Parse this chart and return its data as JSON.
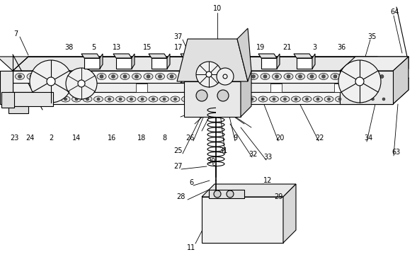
{
  "bg_color": "#ffffff",
  "lc": "#000000",
  "lw": 0.8,
  "fig_width": 5.89,
  "fig_height": 3.63,
  "dpi": 100
}
